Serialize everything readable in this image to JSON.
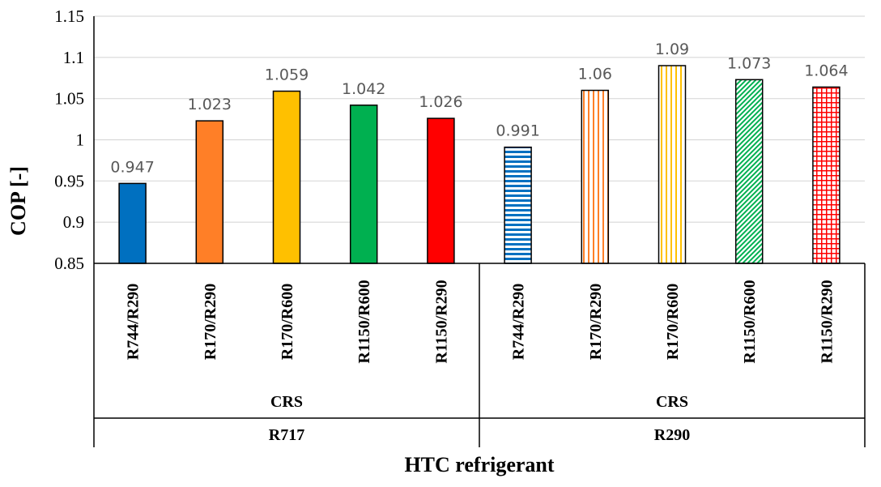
{
  "chart_data": {
    "type": "bar",
    "xlabel": "HTC refrigerant",
    "ylabel": "COP [-]",
    "ylim": [
      0.85,
      1.15
    ],
    "yticks": [
      "0.85",
      "0.9",
      "0.95",
      "1",
      "1.05",
      "1.1",
      "1.15"
    ],
    "grid": true,
    "legend": "none",
    "groups": [
      {
        "name": "R717",
        "subgroup": "CRS",
        "bars": [
          {
            "category": "R744/R290",
            "value": 0.947,
            "label": "0.947",
            "color": "#0070C0",
            "pattern": "solid"
          },
          {
            "category": "R170/R290",
            "value": 1.023,
            "label": "1.023",
            "color": "#FF7F27",
            "pattern": "solid"
          },
          {
            "category": "R170/R600",
            "value": 1.059,
            "label": "1.059",
            "color": "#FFC000",
            "pattern": "solid"
          },
          {
            "category": "R1150/R600",
            "value": 1.042,
            "label": "1.042",
            "color": "#00B050",
            "pattern": "solid"
          },
          {
            "category": "R1150/R290",
            "value": 1.026,
            "label": "1.026",
            "color": "#FF0000",
            "pattern": "solid"
          }
        ]
      },
      {
        "name": "R290",
        "subgroup": "CRS",
        "bars": [
          {
            "category": "R744/R290",
            "value": 0.991,
            "label": "0.991",
            "color": "#0070C0",
            "pattern": "horizontal"
          },
          {
            "category": "R170/R290",
            "value": 1.06,
            "label": "1.06",
            "color": "#FF7F27",
            "pattern": "vertical"
          },
          {
            "category": "R170/R600",
            "value": 1.09,
            "label": "1.09",
            "color": "#FFC000",
            "pattern": "vertical"
          },
          {
            "category": "R1150/R600",
            "value": 1.073,
            "label": "1.073",
            "color": "#00B050",
            "pattern": "diagonal"
          },
          {
            "category": "R1150/R290",
            "value": 1.064,
            "label": "1.064",
            "color": "#FF0000",
            "pattern": "grid"
          }
        ]
      }
    ]
  }
}
